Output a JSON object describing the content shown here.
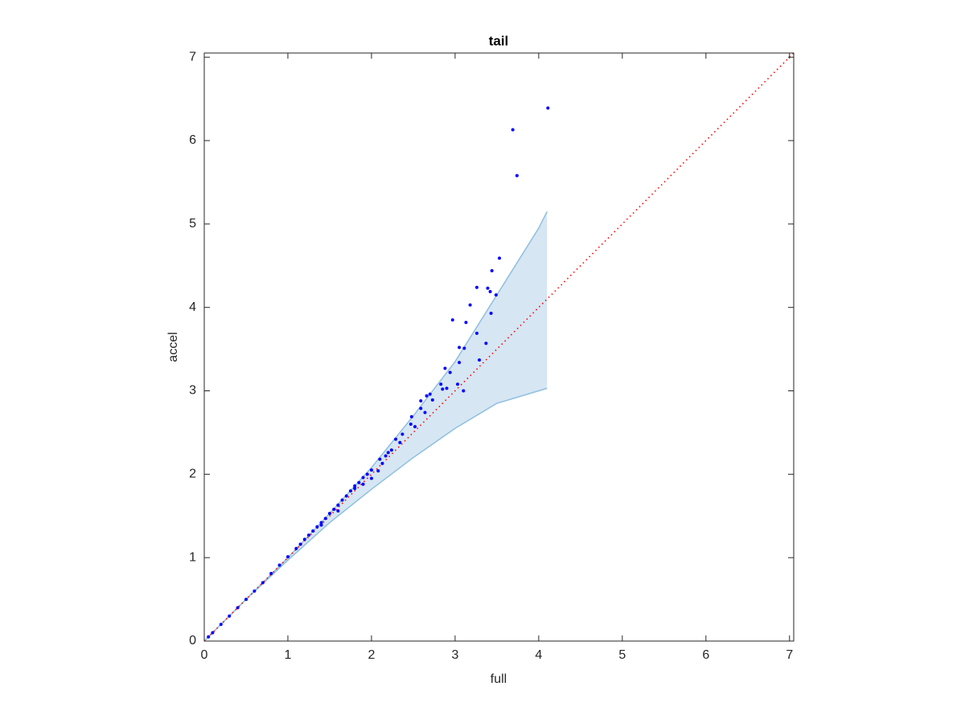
{
  "chart_data": {
    "type": "scatter",
    "title": "tail",
    "x_label": "full",
    "y_label": "accel",
    "xlim": [
      0,
      7.05
    ],
    "ylim": [
      0,
      7.05
    ],
    "xticks": [
      0,
      1,
      2,
      3,
      4,
      5,
      6,
      7
    ],
    "yticks": [
      0,
      1,
      2,
      3,
      4,
      5,
      6,
      7
    ],
    "grid": false,
    "band": {
      "color": "#d6e6f3",
      "edge_color": "#8fbfe0",
      "x": [
        0,
        0.5,
        1,
        1.5,
        2,
        2.5,
        3,
        3.5,
        4,
        4.1
      ],
      "upper": [
        0,
        0.5,
        1.0,
        1.53,
        2.08,
        2.7,
        3.35,
        4.15,
        4.95,
        5.15
      ],
      "lower": [
        0,
        0.5,
        0.97,
        1.42,
        1.82,
        2.2,
        2.55,
        2.85,
        3.0,
        3.03
      ]
    },
    "reference": {
      "color": "#ff0000",
      "x": [
        0,
        7.05
      ],
      "values": [
        0,
        7.05
      ]
    },
    "series": [
      {
        "color": "#0000ff",
        "x": [
          4.11,
          3.69,
          3.74,
          3.53,
          3.49,
          3.44,
          3.39,
          3.42,
          3.26,
          3.18,
          3.13,
          2.97,
          3.43,
          3.26,
          3.05,
          3.11,
          3.37,
          3.29,
          3.05,
          2.88,
          2.94,
          3.03,
          3.1,
          2.83,
          2.85,
          2.9,
          2.7,
          2.73,
          2.66,
          2.59,
          2.59,
          2.64,
          2.48,
          2.52,
          2.47,
          2.37,
          2.34,
          2.29,
          2.24,
          2.17,
          2.13,
          2.08,
          2.0,
          1.95,
          1.9,
          1.85,
          1.8,
          1.75,
          1.7,
          1.65,
          1.6,
          1.55,
          1.5,
          1.45,
          1.4,
          1.35,
          1.3,
          1.25,
          1.2,
          1.15,
          1.1,
          1.0,
          0.9,
          0.8,
          0.7,
          0.6,
          0.5,
          0.4,
          0.3,
          0.2,
          0.1,
          0.05,
          2.0,
          1.9,
          1.6,
          1.4,
          2.1,
          2.2,
          1.8
        ],
        "values": [
          6.39,
          6.13,
          5.58,
          4.59,
          4.15,
          4.44,
          4.23,
          4.19,
          4.24,
          4.03,
          3.82,
          3.85,
          3.93,
          3.69,
          3.52,
          3.51,
          3.57,
          3.37,
          3.34,
          3.27,
          3.22,
          3.08,
          3.0,
          3.08,
          3.02,
          3.03,
          2.96,
          2.89,
          2.94,
          2.88,
          2.79,
          2.74,
          2.69,
          2.57,
          2.6,
          2.48,
          2.38,
          2.42,
          2.29,
          2.22,
          2.13,
          2.04,
          2.05,
          2.0,
          1.96,
          1.9,
          1.83,
          1.8,
          1.74,
          1.69,
          1.63,
          1.58,
          1.53,
          1.47,
          1.42,
          1.37,
          1.32,
          1.27,
          1.22,
          1.16,
          1.11,
          1.01,
          0.91,
          0.81,
          0.7,
          0.6,
          0.5,
          0.4,
          0.3,
          0.2,
          0.1,
          0.05,
          1.95,
          1.88,
          1.56,
          1.39,
          2.18,
          2.26,
          1.86
        ]
      }
    ]
  }
}
